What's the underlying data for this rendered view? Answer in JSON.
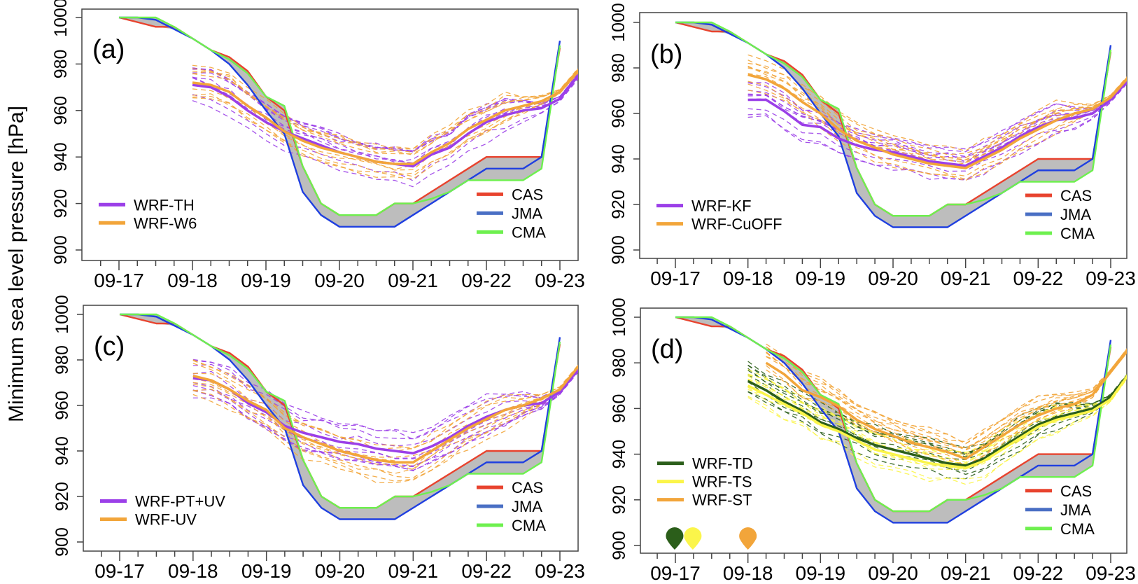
{
  "figure": {
    "ylabel": "Minimum sea level pressure [hPa]"
  },
  "chart_data": [
    {
      "type": "line",
      "panel": "(a)",
      "ylabel": "Minimum sea level pressure [hPa]",
      "xlabel": "",
      "ylim": [
        900,
        1000
      ],
      "yticks": [
        900,
        920,
        940,
        960,
        980,
        1000
      ],
      "xtick_labels": [
        "09-17",
        "09-18",
        "09-19",
        "09-20",
        "09-21",
        "09-22",
        "09-23"
      ],
      "x_unit": "days since 09-17 00 (6-hourly)",
      "grid": false,
      "legend_models": [
        {
          "name": "WRF-TH",
          "color": "#9b3fe8"
        },
        {
          "name": "WRF-W6",
          "color": "#f2a53a"
        }
      ],
      "legend_models_position": "bottom-left",
      "legend_obs": [
        {
          "name": "CAS",
          "color": "#e8432e"
        },
        {
          "name": "JMA",
          "color": "#4a6fc4"
        },
        {
          "name": "CMA",
          "color": "#6ef04f"
        }
      ],
      "legend_obs_position": "bottom-right",
      "observations": "shared",
      "model_means": [
        {
          "name": "WRF-TH",
          "start": 1.0,
          "values": [
            971,
            970,
            966,
            960,
            955,
            951,
            948,
            945,
            942,
            940,
            938,
            937,
            936,
            941,
            944,
            950,
            955,
            958,
            960,
            961,
            965,
            975,
            987
          ]
        },
        {
          "name": "WRF-W6",
          "start": 1.0,
          "values": [
            972,
            971,
            968,
            962,
            957,
            951,
            947,
            944,
            942,
            940,
            938,
            937,
            937,
            942,
            946,
            952,
            956,
            960,
            962,
            964,
            968,
            977,
            986
          ]
        }
      ],
      "spread": 8
    },
    {
      "type": "line",
      "panel": "(b)",
      "ylim": [
        900,
        1000
      ],
      "yticks": [
        900,
        920,
        940,
        960,
        980,
        1000
      ],
      "xtick_labels": [
        "09-17",
        "09-18",
        "09-19",
        "09-20",
        "09-21",
        "09-22",
        "09-23"
      ],
      "grid": false,
      "legend_models": [
        {
          "name": "WRF-KF",
          "color": "#9b3fe8"
        },
        {
          "name": "WRF-CuOFF",
          "color": "#f2a53a"
        }
      ],
      "legend_models_position": "bottom-left",
      "legend_obs": [
        {
          "name": "CAS",
          "color": "#e8432e"
        },
        {
          "name": "JMA",
          "color": "#4a6fc4"
        },
        {
          "name": "CMA",
          "color": "#6ef04f"
        }
      ],
      "legend_obs_position": "bottom-right",
      "model_means": [
        {
          "name": "WRF-KF",
          "start": 1.0,
          "values": [
            966,
            966,
            961,
            955,
            954,
            949,
            946,
            944,
            943,
            941,
            939,
            938,
            937,
            941,
            945,
            950,
            954,
            957,
            958,
            960,
            966,
            975,
            986
          ]
        },
        {
          "name": "WRF-CuOFF",
          "start": 1.0,
          "values": [
            977,
            975,
            971,
            965,
            960,
            953,
            948,
            945,
            942,
            940,
            938,
            937,
            936,
            940,
            944,
            949,
            953,
            957,
            960,
            962,
            967,
            976,
            986
          ]
        }
      ],
      "spread": 9
    },
    {
      "type": "line",
      "panel": "(c)",
      "ylim": [
        900,
        1000
      ],
      "yticks": [
        900,
        920,
        940,
        960,
        980,
        1000
      ],
      "xtick_labels": [
        "09-17",
        "09-18",
        "09-19",
        "09-20",
        "09-21",
        "09-22",
        "09-23"
      ],
      "grid": false,
      "legend_models": [
        {
          "name": "WRF-PT+UV",
          "color": "#9b3fe8"
        },
        {
          "name": "WRF-UV",
          "color": "#f2a53a"
        }
      ],
      "legend_models_position": "bottom-left",
      "legend_obs": [
        {
          "name": "CAS",
          "color": "#e8432e"
        },
        {
          "name": "JMA",
          "color": "#4a6fc4"
        },
        {
          "name": "CMA",
          "color": "#6ef04f"
        }
      ],
      "legend_obs_position": "bottom-right",
      "model_means": [
        {
          "name": "WRF-PT+UV",
          "start": 1.0,
          "values": [
            972,
            971,
            967,
            961,
            957,
            951,
            948,
            946,
            944,
            943,
            941,
            940,
            939,
            942,
            946,
            951,
            955,
            958,
            960,
            961,
            966,
            976,
            986
          ]
        },
        {
          "name": "WRF-UV",
          "start": 1.0,
          "values": [
            973,
            971,
            967,
            962,
            958,
            950,
            946,
            943,
            940,
            938,
            936,
            935,
            935,
            940,
            945,
            950,
            954,
            958,
            960,
            963,
            967,
            977,
            986
          ]
        }
      ],
      "spread": 9
    },
    {
      "type": "line",
      "panel": "(d)",
      "ylim": [
        900,
        1000
      ],
      "yticks": [
        900,
        920,
        940,
        960,
        980,
        1000
      ],
      "xtick_labels": [
        "09-17",
        "09-18",
        "09-19",
        "09-20",
        "09-21",
        "09-22",
        "09-23"
      ],
      "grid": false,
      "legend_models": [
        {
          "name": "WRF-TD",
          "color": "#2b5e1a"
        },
        {
          "name": "WRF-TS",
          "color": "#fbf54a"
        },
        {
          "name": "WRF-ST",
          "color": "#f2a53a"
        }
      ],
      "legend_models_position": "bottom-left",
      "legend_obs": [
        {
          "name": "CAS",
          "color": "#e8432e"
        },
        {
          "name": "JMA",
          "color": "#4a6fc4"
        },
        {
          "name": "CMA",
          "color": "#6ef04f"
        }
      ],
      "legend_obs_position": "bottom-right",
      "model_means": [
        {
          "name": "WRF-TD",
          "start": 1.0,
          "values": [
            972,
            968,
            963,
            959,
            954,
            951,
            947,
            944,
            942,
            940,
            938,
            936,
            935,
            938,
            943,
            948,
            953,
            956,
            958,
            960,
            965,
            975,
            986
          ]
        },
        {
          "name": "WRF-TS",
          "start": 1.0,
          "values": [
            970,
            966,
            962,
            958,
            953,
            950,
            946,
            942,
            940,
            938,
            936,
            935,
            934,
            937,
            942,
            947,
            952,
            955,
            957,
            959,
            964,
            975,
            986
          ]
        },
        {
          "name": "WRF-ST",
          "start": 1.25,
          "values": [
            980,
            975,
            968,
            965,
            961,
            955,
            951,
            948,
            945,
            943,
            941,
            938,
            943,
            948,
            953,
            957,
            960,
            962,
            966,
            976,
            986
          ]
        }
      ],
      "spread": 8,
      "start_markers": [
        {
          "name": "WRF-TD",
          "day": -0.01,
          "color": "#2b5e1a"
        },
        {
          "name": "WRF-TS",
          "day": 0.24,
          "color": "#fbf54a"
        },
        {
          "name": "WRF-ST",
          "day": 1.0,
          "color": "#f2a53a"
        }
      ]
    }
  ],
  "observations": {
    "x_start": 0,
    "x_step": 0.25,
    "CAS": [
      1000,
      998,
      996,
      996,
      991,
      986,
      983,
      977,
      966,
      960,
      936,
      920,
      915,
      915,
      915,
      920,
      920,
      925,
      930,
      935,
      940,
      940,
      940,
      940,
      987
    ],
    "JMA": [
      1000,
      1000,
      999,
      995,
      991,
      986,
      980,
      971,
      960,
      950,
      925,
      915,
      910,
      910,
      910,
      910,
      915,
      920,
      925,
      930,
      935,
      935,
      935,
      940,
      990
    ],
    "CMA": [
      1000,
      1000,
      1000,
      996,
      991,
      986,
      982,
      976,
      966,
      962,
      936,
      920,
      915,
      915,
      915,
      920,
      920,
      922,
      925,
      930,
      930,
      930,
      930,
      935,
      988
    ]
  }
}
